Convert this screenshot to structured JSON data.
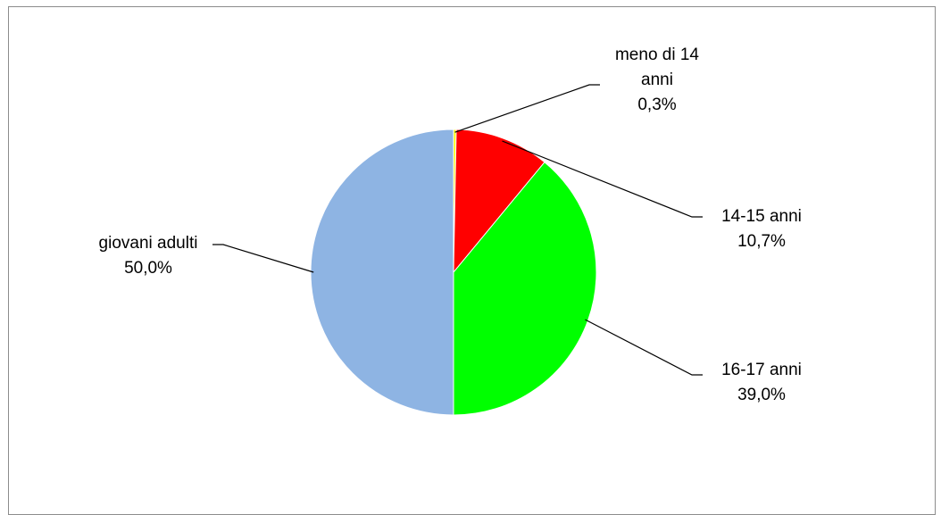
{
  "chart_data": {
    "type": "pie",
    "title": "",
    "slices": [
      {
        "label": "meno di 14 anni",
        "label_lines": [
          "meno di 14",
          "anni"
        ],
        "value": 0.3,
        "value_text": "0,3%",
        "color": "#ffff00"
      },
      {
        "label": "14-15 anni",
        "label_lines": [
          "14-15 anni"
        ],
        "value": 10.7,
        "value_text": "10,7%",
        "color": "#ff0000"
      },
      {
        "label": "16-17 anni",
        "label_lines": [
          "16-17 anni"
        ],
        "value": 39.0,
        "value_text": "39,0%",
        "color": "#00ff00"
      },
      {
        "label": "giovani adulti",
        "label_lines": [
          "giovani adulti"
        ],
        "value": 50.0,
        "value_text": "50,0%",
        "color": "#8eb4e3"
      }
    ],
    "legend": "none",
    "data_labels": "outside with leader lines"
  }
}
